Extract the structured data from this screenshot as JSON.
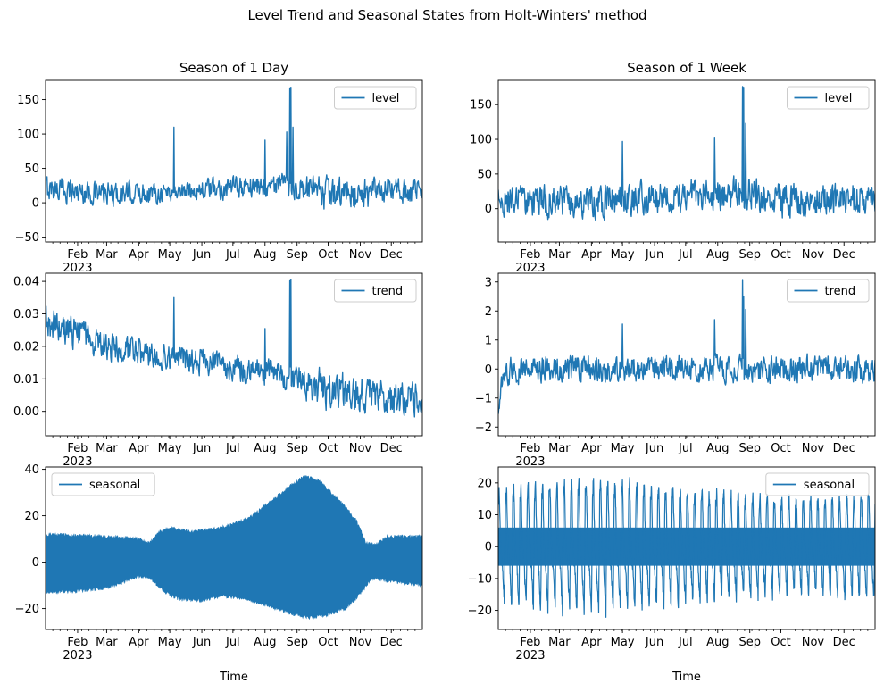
{
  "figure": {
    "suptitle": "Level Trend and Seasonal States from Holt-Winters' method",
    "column_titles": [
      "Season of 1 Day",
      "Season of 1 Week"
    ],
    "series_color": "#1f77b4",
    "x_tick_labels": [
      "Feb",
      "Mar",
      "Apr",
      "May",
      "Jun",
      "Jul",
      "Aug",
      "Sep",
      "Oct",
      "Nov",
      "Dec"
    ],
    "year_label": "2023",
    "xlabel": "Time"
  },
  "chart_data": [
    {
      "type": "line",
      "column_title": "Season of 1 Day",
      "series": [
        {
          "name": "level"
        }
      ],
      "legend": "upper-right",
      "ylim": [
        -57,
        178
      ],
      "yticks": [
        -50,
        0,
        50,
        100,
        150
      ],
      "ytick_labels": [
        "−50",
        "0",
        "50",
        "100",
        "150"
      ],
      "approx_base": [
        [
          0,
          22
        ],
        [
          60,
          12
        ],
        [
          120,
          16
        ],
        [
          160,
          20
        ],
        [
          200,
          24
        ],
        [
          230,
          26
        ],
        [
          270,
          12
        ],
        [
          300,
          12
        ],
        [
          330,
          16
        ],
        [
          364,
          18
        ]
      ],
      "approx_noise_amplitude": [
        [
          0,
          18
        ],
        [
          120,
          14
        ],
        [
          240,
          16
        ],
        [
          270,
          24
        ],
        [
          330,
          20
        ],
        [
          364,
          16
        ]
      ],
      "spikes": [
        {
          "day": 124,
          "value": 110
        },
        {
          "day": 212,
          "value": 91
        },
        {
          "day": 233,
          "value": 103
        },
        {
          "day": 236,
          "value": 167
        },
        {
          "day": 237,
          "value": 168
        },
        {
          "day": 239,
          "value": 110
        }
      ],
      "approx_range": [
        -48,
        168
      ]
    },
    {
      "type": "line",
      "column_title": "Season of 1 Week",
      "series": [
        {
          "name": "level"
        }
      ],
      "legend": "upper-right",
      "ylim": [
        -48,
        185
      ],
      "yticks": [
        0,
        50,
        100,
        150
      ],
      "ytick_labels": [
        "0",
        "50",
        "100",
        "150"
      ],
      "approx_base": [
        [
          0,
          12
        ],
        [
          80,
          8
        ],
        [
          130,
          15
        ],
        [
          190,
          20
        ],
        [
          240,
          25
        ],
        [
          270,
          12
        ],
        [
          330,
          15
        ],
        [
          364,
          18
        ]
      ],
      "approx_noise_amplitude": [
        [
          0,
          22
        ],
        [
          200,
          22
        ],
        [
          270,
          25
        ],
        [
          364,
          20
        ]
      ],
      "spikes": [
        {
          "day": 120,
          "value": 97
        },
        {
          "day": 209,
          "value": 103
        },
        {
          "day": 236,
          "value": 176
        },
        {
          "day": 237,
          "value": 175
        },
        {
          "day": 239,
          "value": 123
        }
      ],
      "approx_range": [
        -40,
        176
      ]
    },
    {
      "type": "line",
      "column_title": "Season of 1 Day",
      "series": [
        {
          "name": "trend"
        }
      ],
      "legend": "upper-right",
      "ylim": [
        -0.0075,
        0.0425
      ],
      "yticks": [
        0.0,
        0.01,
        0.02,
        0.03,
        0.04
      ],
      "ytick_labels": [
        "0.00",
        "0.01",
        "0.02",
        "0.03",
        "0.04"
      ],
      "approx_base": [
        [
          0,
          0.027
        ],
        [
          30,
          0.024
        ],
        [
          60,
          0.02
        ],
        [
          100,
          0.017
        ],
        [
          150,
          0.015
        ],
        [
          200,
          0.013
        ],
        [
          240,
          0.01
        ],
        [
          270,
          0.007
        ],
        [
          330,
          0.004
        ],
        [
          364,
          0.003
        ]
      ],
      "approx_noise_amplitude": [
        [
          0,
          0.005
        ],
        [
          100,
          0.004
        ],
        [
          240,
          0.004
        ],
        [
          270,
          0.006
        ],
        [
          364,
          0.005
        ]
      ],
      "spikes": [
        {
          "day": 124,
          "value": 0.035
        },
        {
          "day": 212,
          "value": 0.0255
        },
        {
          "day": 236,
          "value": 0.0402
        },
        {
          "day": 237,
          "value": 0.0405
        }
      ],
      "approx_range": [
        -0.007,
        0.0405
      ]
    },
    {
      "type": "line",
      "column_title": "Season of 1 Week",
      "series": [
        {
          "name": "trend"
        }
      ],
      "legend": "upper-right",
      "ylim": [
        -2.3,
        3.3
      ],
      "yticks": [
        -2,
        -1,
        0,
        1,
        2,
        3
      ],
      "ytick_labels": [
        "−2",
        "−1",
        "0",
        "1",
        "2",
        "3"
      ],
      "approx_base": [
        [
          0,
          -1.4
        ],
        [
          4,
          -0.3
        ],
        [
          12,
          0.0
        ],
        [
          364,
          0.0
        ]
      ],
      "approx_noise_amplitude": [
        [
          0,
          0.3
        ],
        [
          12,
          0.45
        ],
        [
          364,
          0.45
        ]
      ],
      "spikes": [
        {
          "day": 120,
          "value": 1.55
        },
        {
          "day": 209,
          "value": 1.7
        },
        {
          "day": 236,
          "value": 3.05
        },
        {
          "day": 237,
          "value": 2.5
        },
        {
          "day": 239,
          "value": 2.05
        }
      ],
      "approx_range": [
        -2.1,
        3.05
      ]
    },
    {
      "type": "area",
      "column_title": "Season of 1 Day",
      "series": [
        {
          "name": "seasonal"
        }
      ],
      "legend": "upper-left",
      "ylim": [
        -29,
        41
      ],
      "yticks": [
        -20,
        0,
        20,
        40
      ],
      "ytick_labels": [
        "−20",
        "0",
        "20",
        "40"
      ],
      "upper_envelope": [
        [
          0,
          12
        ],
        [
          30,
          11.5
        ],
        [
          60,
          11
        ],
        [
          90,
          10
        ],
        [
          100,
          8
        ],
        [
          110,
          13
        ],
        [
          120,
          15
        ],
        [
          140,
          13
        ],
        [
          160,
          14
        ],
        [
          180,
          16
        ],
        [
          200,
          20
        ],
        [
          220,
          27
        ],
        [
          240,
          34
        ],
        [
          250,
          37
        ],
        [
          265,
          35
        ],
        [
          285,
          26
        ],
        [
          300,
          18
        ],
        [
          310,
          8
        ],
        [
          320,
          8
        ],
        [
          330,
          11
        ],
        [
          364,
          11
        ]
      ],
      "lower_envelope": [
        [
          0,
          -13
        ],
        [
          30,
          -12.5
        ],
        [
          60,
          -11
        ],
        [
          90,
          -6
        ],
        [
          100,
          -6.5
        ],
        [
          115,
          -13
        ],
        [
          130,
          -16
        ],
        [
          150,
          -16.5
        ],
        [
          170,
          -14.5
        ],
        [
          190,
          -15.5
        ],
        [
          210,
          -18
        ],
        [
          230,
          -21
        ],
        [
          245,
          -23
        ],
        [
          255,
          -24
        ],
        [
          270,
          -23
        ],
        [
          290,
          -20
        ],
        [
          305,
          -13
        ],
        [
          315,
          -7
        ],
        [
          320,
          -7
        ],
        [
          330,
          -8
        ],
        [
          364,
          -10
        ]
      ]
    },
    {
      "type": "line",
      "column_title": "Season of 1 Week",
      "series": [
        {
          "name": "seasonal"
        }
      ],
      "legend": "upper-right",
      "ylim": [
        -26,
        25
      ],
      "yticks": [
        -20,
        -10,
        0,
        10,
        20
      ],
      "ytick_labels": [
        "−20",
        "−10",
        "0",
        "10",
        "20"
      ],
      "period_days": 7,
      "weekly_profile": [
        16,
        20,
        4,
        -4,
        -6,
        -14,
        -20
      ],
      "band": [
        -6,
        6
      ],
      "approx_range": [
        -22,
        22
      ]
    }
  ]
}
